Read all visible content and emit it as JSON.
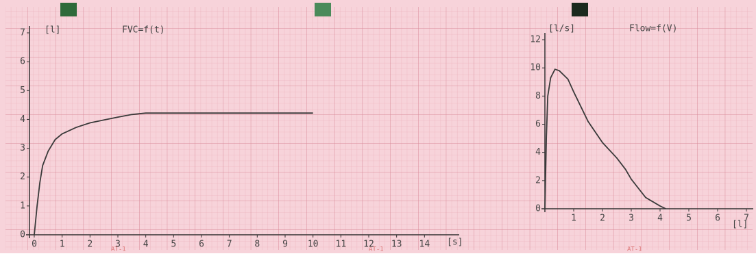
{
  "chart_data": [
    {
      "type": "line",
      "title": "FVC=f(t)",
      "y_label": "[l]",
      "x_label": "[s]",
      "annotations": [
        "AT-1",
        "AT-1"
      ],
      "xlim": [
        0,
        15
      ],
      "xticks": [
        0,
        1,
        2,
        3,
        4,
        5,
        6,
        7,
        8,
        9,
        10,
        11,
        12,
        13,
        14
      ],
      "ylim": [
        0,
        7
      ],
      "yticks": [
        0,
        1,
        2,
        3,
        4,
        5,
        6,
        7
      ],
      "series": [
        {
          "color": "#3a3a3a",
          "x": [
            0,
            0.1,
            0.2,
            0.3,
            0.5,
            0.75,
            1,
            1.5,
            2,
            2.5,
            3,
            3.5,
            4,
            5,
            6,
            7,
            8,
            9,
            10
          ],
          "values": [
            0,
            1.0,
            1.8,
            2.4,
            2.9,
            3.3,
            3.5,
            3.72,
            3.88,
            3.98,
            4.08,
            4.17,
            4.22,
            4.22,
            4.22,
            4.22,
            4.22,
            4.22,
            4.22
          ]
        }
      ]
    },
    {
      "type": "line",
      "title": "Flow=f(V)",
      "y_label": "[l/s]",
      "x_label": "[l]",
      "annotation": "AT-1",
      "xlim": [
        0,
        7
      ],
      "xticks": [
        1,
        2,
        3,
        4,
        5,
        6,
        7
      ],
      "ylim": [
        0,
        12
      ],
      "yticks": [
        0,
        2,
        4,
        6,
        8,
        10,
        12
      ],
      "series": [
        {
          "color": "#3a3a3a",
          "x": [
            0,
            0.05,
            0.1,
            0.2,
            0.35,
            0.5,
            0.8,
            1,
            1.5,
            2,
            2.5,
            2.8,
            3,
            3.5,
            4,
            4.2
          ],
          "values": [
            0,
            5,
            8,
            9.3,
            9.9,
            9.8,
            9.2,
            8.3,
            6.2,
            4.7,
            3.6,
            2.8,
            2.1,
            0.8,
            0.2,
            0
          ]
        }
      ]
    }
  ]
}
